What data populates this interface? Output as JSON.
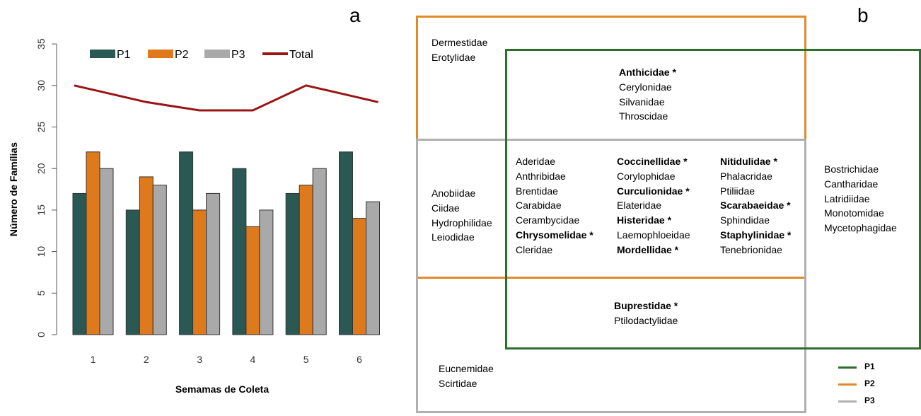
{
  "colors": {
    "P1": "#2a5953",
    "P2": "#df7a1c",
    "P3": "#a9a9a9",
    "Total": "#9b1414",
    "venn_P1": "#2d6e2c",
    "venn_P2": "#e08a2a",
    "venn_P3": "#b0b0b0"
  },
  "chart_data": {
    "type": "bar",
    "panel_label": "a",
    "categories": [
      "1",
      "2",
      "3",
      "4",
      "5",
      "6"
    ],
    "series": [
      {
        "name": "P1",
        "type": "bar",
        "values": [
          17,
          15,
          22,
          20,
          17,
          22
        ]
      },
      {
        "name": "P2",
        "type": "bar",
        "values": [
          22,
          19,
          15,
          13,
          18,
          14
        ]
      },
      {
        "name": "P3",
        "type": "bar",
        "values": [
          20,
          18,
          17,
          15,
          20,
          16
        ]
      },
      {
        "name": "Total",
        "type": "line",
        "values": [
          30,
          28,
          27,
          27,
          30,
          28
        ]
      }
    ],
    "xlabel": "Semamas de Coleta",
    "ylabel": "Número de Famílias",
    "ylim": [
      0,
      35
    ],
    "yticks": [
      "0",
      "5",
      "10",
      "15",
      "20",
      "25",
      "30",
      "35"
    ],
    "grid": false,
    "legend_position": "top"
  },
  "venn": {
    "panel_label": "b",
    "regions": {
      "p2_only": [
        {
          "text": "Dermestidae",
          "bold": false
        },
        {
          "text": "Erotylidae",
          "bold": false
        }
      ],
      "p1_p2": [
        {
          "text": "Anthicidae *",
          "bold": true
        },
        {
          "text": "Cerylonidae",
          "bold": false
        },
        {
          "text": "Silvanidae",
          "bold": false
        },
        {
          "text": "Throscidae",
          "bold": false
        }
      ],
      "p2_p3": [
        {
          "text": "Anobiidae",
          "bold": false
        },
        {
          "text": "Ciidae",
          "bold": false
        },
        {
          "text": "Hydrophilidae",
          "bold": false
        },
        {
          "text": "Leiodidae",
          "bold": false
        }
      ],
      "all_col1": [
        {
          "text": "Aderidae",
          "bold": false
        },
        {
          "text": "Anthribidae",
          "bold": false
        },
        {
          "text": "Brentidae",
          "bold": false
        },
        {
          "text": "Carabidae",
          "bold": false
        },
        {
          "text": "Cerambycidae",
          "bold": false
        },
        {
          "text": "Chrysomelidae *",
          "bold": true
        },
        {
          "text": "Cleridae",
          "bold": false
        }
      ],
      "all_col2": [
        {
          "text": "Coccinellidae *",
          "bold": true
        },
        {
          "text": "Corylophidae",
          "bold": false
        },
        {
          "text": "Curculionidae *",
          "bold": true
        },
        {
          "text": "Elateridae",
          "bold": false
        },
        {
          "text": "Histeridae *",
          "bold": true
        },
        {
          "text": "Laemophloeidae",
          "bold": false
        },
        {
          "text": "Mordellidae *",
          "bold": true
        }
      ],
      "all_col3": [
        {
          "text": "Nitidulidae *",
          "bold": true
        },
        {
          "text": "Phalacridae",
          "bold": false
        },
        {
          "text": "Ptiliidae",
          "bold": false
        },
        {
          "text": "Scarabaeidae *",
          "bold": true
        },
        {
          "text": "Sphindidae",
          "bold": false
        },
        {
          "text": "Staphylinidae *",
          "bold": true
        },
        {
          "text": "Tenebrionidae",
          "bold": false
        }
      ],
      "p1_only": [
        {
          "text": "Bostrichidae",
          "bold": false
        },
        {
          "text": "Cantharidae",
          "bold": false
        },
        {
          "text": "Latridiidae",
          "bold": false
        },
        {
          "text": "Monotomidae",
          "bold": false
        },
        {
          "text": "Mycetophagidae",
          "bold": false
        }
      ],
      "p1_p3": [
        {
          "text": "Buprestidae *",
          "bold": true
        },
        {
          "text": "Ptilodactylidae",
          "bold": false
        }
      ],
      "p3_only": [
        {
          "text": "Eucnemidae",
          "bold": false
        },
        {
          "text": "Scirtidae",
          "bold": false
        }
      ]
    },
    "legend": [
      "P1",
      "P2",
      "P3"
    ]
  }
}
